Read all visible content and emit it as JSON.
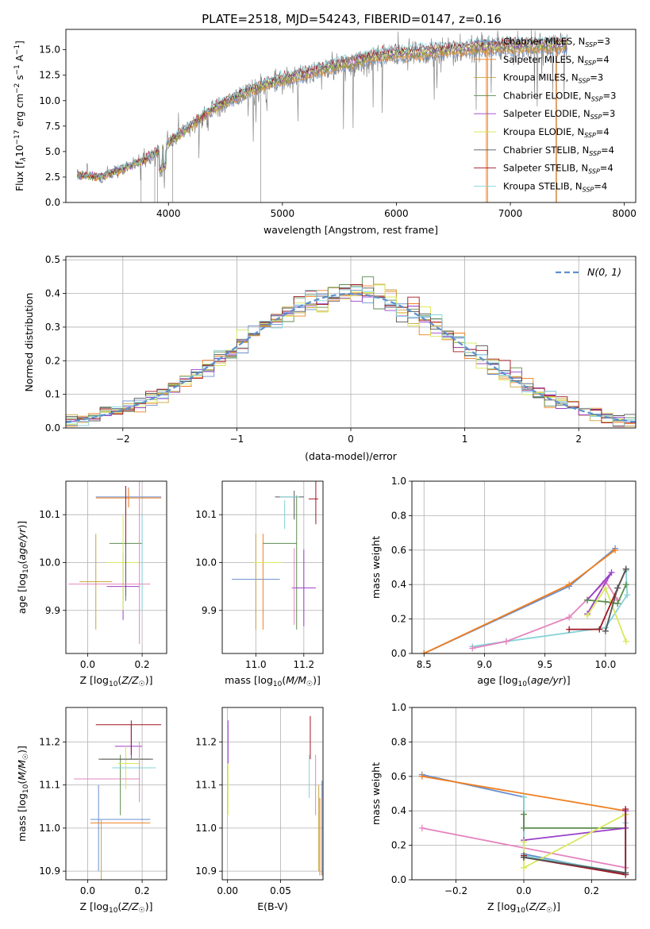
{
  "figure": {
    "title": "PLATE=2518, MJD=54243, FIBERID=0147, z=0.16"
  },
  "colors": {
    "series": [
      "#6a8fce",
      "#f07f1f",
      "#c6a53c",
      "#5d8c4e",
      "#9a3fc8",
      "#d9e85a",
      "#555555",
      "#a01520",
      "#84d3da"
    ],
    "gaussian": "#5e8fce",
    "pink": "#e484be",
    "spectrum": "#777777",
    "grid": "#b0b0b0"
  },
  "chart_data": [
    {
      "id": "spectrum",
      "type": "line",
      "xlabel": "wavelength [Angstrom, rest frame]",
      "ylabel": "Flux [f$_\\lambda$10$^{-17}$ erg cm$^{-2}$ s$^{-1}$ A$^{-1}$]",
      "xlim": [
        3100,
        8100
      ],
      "ylim": [
        0,
        17
      ],
      "xticks": [
        4000,
        5000,
        6000,
        7000,
        8000
      ],
      "yticks": [
        0.0,
        2.5,
        5.0,
        7.5,
        10.0,
        12.5,
        15.0
      ],
      "ytick_labels": [
        "0.0",
        "2.5",
        "5.0",
        "7.5",
        "10.0",
        "12.5",
        "15.0"
      ],
      "grid": false,
      "legend_position": "right",
      "legend": [
        {
          "label": "Chabrier MILES, N",
          "sub": "SSP",
          "n": "=3"
        },
        {
          "label": "Salpeter MILES, N",
          "sub": "SSP",
          "n": "=4"
        },
        {
          "label": "Kroupa MILES, N",
          "sub": "SSP",
          "n": "=3"
        },
        {
          "label": "Chabrier ELODIE, N",
          "sub": "SSP",
          "n": "=3"
        },
        {
          "label": "Salpeter ELODIE, N",
          "sub": "SSP",
          "n": "=3"
        },
        {
          "label": "Kroupa ELODIE, N",
          "sub": "SSP",
          "n": "=4"
        },
        {
          "label": "Chabrier STELIB, N",
          "sub": "SSP",
          "n": "=4"
        },
        {
          "label": "Salpeter STELIB, N",
          "sub": "SSP",
          "n": "=4"
        },
        {
          "label": "Kroupa STELIB, N",
          "sub": "SSP",
          "n": "=4"
        }
      ],
      "continuum": {
        "x": [
          3200,
          3400,
          3600,
          3800,
          4000,
          4200,
          4400,
          4600,
          4800,
          5000,
          5200,
          5400,
          5600,
          5800,
          6000,
          6200,
          6400,
          6600,
          6800,
          7000,
          7200,
          7400,
          7500
        ],
        "y": [
          2.7,
          2.5,
          3.3,
          4.2,
          5.8,
          7.5,
          9.2,
          10.3,
          11.3,
          12.0,
          12.5,
          13.2,
          13.6,
          14.2,
          14.5,
          14.6,
          14.8,
          15.0,
          15.1,
          15.2,
          15.3,
          15.3,
          15.4
        ]
      },
      "model_range": [
        3200,
        7500
      ]
    },
    {
      "id": "residuals",
      "type": "histogram",
      "xlabel": "(data-model)/error",
      "ylabel": "Normed distribution",
      "xlim": [
        -2.5,
        2.5
      ],
      "ylim": [
        0,
        0.51
      ],
      "xticks": [
        -2,
        -1,
        0,
        1,
        2
      ],
      "xtick_labels": [
        "−2",
        "−1",
        "0",
        "1",
        "2"
      ],
      "yticks": [
        0.0,
        0.1,
        0.2,
        0.3,
        0.4,
        0.5
      ],
      "ytick_labels": [
        "0.0",
        "0.1",
        "0.2",
        "0.3",
        "0.4",
        "0.5"
      ],
      "grid": true,
      "legend_position": "top-right",
      "gaussian_label": "N(0, 1)",
      "bin_width": 0.1
    },
    {
      "id": "age-vs-Z",
      "type": "errorbar",
      "xlabel": "Z [log₁₀(Z/Z☉)]",
      "ylabel": "age [log₁₀(age/yr)]",
      "xlim": [
        -0.08,
        0.29
      ],
      "ylim": [
        9.81,
        10.17
      ],
      "xticks": [
        0.0,
        0.2
      ],
      "xtick_labels": [
        "0.0",
        "0.2"
      ],
      "yticks": [
        9.9,
        10.0,
        10.1
      ],
      "ytick_labels": [
        "9.9",
        "10.0",
        "10.1"
      ],
      "grid": true,
      "points": [
        {
          "c": 0,
          "x": 0.15,
          "xe": 0.12,
          "y": 10.137,
          "ye": 0.02
        },
        {
          "c": 1,
          "x": 0.15,
          "xe": 0.12,
          "y": 10.135,
          "ye": 0.02
        },
        {
          "c": 2,
          "x": 0.03,
          "xe": 0.06,
          "y": 9.96,
          "ye": 0.1
        },
        {
          "c": 3,
          "x": 0.14,
          "xe": 0.06,
          "y": 10.04,
          "ye": 0.12
        },
        {
          "c": 4,
          "x": 0.13,
          "xe": 0.06,
          "y": 9.95,
          "ye": 0.07
        },
        {
          "c": 5,
          "x": 0.13,
          "xe": 0.06,
          "y": 10.0,
          "ye": 0.1
        },
        {
          "c": 6,
          "x": 0.14,
          "xe": 0.0,
          "y": 10.03,
          "ye": 0.1
        },
        {
          "c": 7,
          "x": 0.14,
          "xe": 0.0,
          "y": 10.1,
          "ye": 0.06
        },
        {
          "c": 8,
          "x": 0.2,
          "xe": 0.0,
          "y": 10.0,
          "ye": 0.1
        },
        {
          "c": 9,
          "x": 0.08,
          "xe": 0.15,
          "y": 9.955,
          "ye": 0.0
        },
        {
          "c": 9,
          "x": 0.19,
          "xe": 0.0,
          "y": 10.0,
          "ye": 0.17
        }
      ]
    },
    {
      "id": "age-vs-mass",
      "type": "errorbar",
      "xlabel": "mass [log₁₀(M/M☉)]",
      "ylabel": "",
      "xlim": [
        10.86,
        11.28
      ],
      "ylim": [
        9.81,
        10.17
      ],
      "xticks": [
        11.0,
        11.2
      ],
      "xtick_labels": [
        "11.0",
        "11.2"
      ],
      "yticks": [
        9.9,
        10.0,
        10.1
      ],
      "ytick_labels": [
        "9.9",
        "10.0",
        "10.1"
      ],
      "grid": true,
      "points": [
        {
          "c": 0,
          "x": 11.0,
          "xe": 0.1,
          "y": 9.965,
          "ye": 0.0
        },
        {
          "c": 1,
          "x": 11.03,
          "xe": 0.0,
          "y": 9.96,
          "ye": 0.1
        },
        {
          "c": 2,
          "x": 11.0,
          "xe": 0.0,
          "y": 9.96,
          "ye": 0.1
        },
        {
          "c": 3,
          "x": 11.1,
          "xe": 0.07,
          "y": 10.04,
          "ye": 0.0
        },
        {
          "c": 3,
          "x": 11.17,
          "xe": 0.0,
          "y": 10.0,
          "ye": 0.14
        },
        {
          "c": 4,
          "x": 11.2,
          "xe": 0.05,
          "y": 9.947,
          "ye": 0.0
        },
        {
          "c": 4,
          "x": 11.2,
          "xe": 0.0,
          "y": 9.947,
          "ye": 0.08
        },
        {
          "c": 5,
          "x": 11.05,
          "xe": 0.06,
          "y": 10.0,
          "ye": 0.0
        },
        {
          "c": 6,
          "x": 11.14,
          "xe": 0.06,
          "y": 10.137,
          "ye": 0.0
        },
        {
          "c": 6,
          "x": 11.16,
          "xe": 0.0,
          "y": 10.12,
          "ye": 0.03
        },
        {
          "c": 7,
          "x": 11.24,
          "xe": 0.02,
          "y": 10.133,
          "ye": 0.0
        },
        {
          "c": 7,
          "x": 11.25,
          "xe": 0.0,
          "y": 10.13,
          "ye": 0.05
        },
        {
          "c": 8,
          "x": 11.12,
          "xe": 0.0,
          "y": 10.1,
          "ye": 0.03
        },
        {
          "c": 8,
          "x": 11.14,
          "xe": 0.04,
          "y": 10.137,
          "ye": 0.0
        },
        {
          "c": 9,
          "x": 11.16,
          "xe": 0.0,
          "y": 9.95,
          "ye": 0.08
        }
      ]
    },
    {
      "id": "massweight-vs-age",
      "type": "line",
      "xlabel": "age [log₁₀(age/yr)]",
      "ylabel": "mass weight",
      "xlim": [
        8.4,
        10.25
      ],
      "ylim": [
        0,
        1
      ],
      "xticks": [
        8.5,
        9.0,
        9.5,
        10.0
      ],
      "xtick_labels": [
        "8.5",
        "9.0",
        "9.5",
        "10.0"
      ],
      "yticks": [
        0.0,
        0.2,
        0.4,
        0.6,
        0.8,
        1.0
      ],
      "ytick_labels": [
        "0.0",
        "0.2",
        "0.4",
        "0.6",
        "0.8",
        "1.0"
      ],
      "grid": true,
      "series": [
        {
          "c": 0,
          "x": [
            8.5,
            9.7,
            10.08
          ],
          "y": [
            0.0,
            0.39,
            0.61
          ]
        },
        {
          "c": 1,
          "x": [
            8.5,
            9.7,
            10.08
          ],
          "y": [
            0.0,
            0.4,
            0.6
          ]
        },
        {
          "c": 8,
          "x": [
            8.9,
            9.18,
            10.0,
            10.18,
            10.17
          ],
          "y": [
            0.04,
            0.07,
            0.15,
            0.34,
            0.48
          ]
        },
        {
          "c": 9,
          "x": [
            8.9,
            9.18,
            9.7,
            10.0,
            10.1
          ],
          "y": [
            0.03,
            0.07,
            0.21,
            0.42,
            0.31
          ]
        },
        {
          "c": 4,
          "x": [
            9.85,
            10.05,
            9.85
          ],
          "y": [
            0.23,
            0.47,
            0.31
          ]
        },
        {
          "c": 3,
          "x": [
            9.85,
            10.0,
            10.1,
            10.17
          ],
          "y": [
            0.31,
            0.3,
            0.29,
            0.4
          ]
        },
        {
          "c": 5,
          "x": [
            9.85,
            10.0,
            10.17
          ],
          "y": [
            0.22,
            0.38,
            0.07
          ]
        },
        {
          "c": 7,
          "x": [
            9.7,
            9.95,
            10.17
          ],
          "y": [
            0.14,
            0.14,
            0.49
          ]
        },
        {
          "c": 6,
          "x": [
            10.0,
            10.1,
            10.17
          ],
          "y": [
            0.13,
            0.38,
            0.49
          ]
        }
      ]
    },
    {
      "id": "mass-vs-Z",
      "type": "errorbar",
      "xlabel": "Z [log₁₀(Z/Z☉)]",
      "ylabel": "mass [log₁₀(M/M☉)]",
      "xlim": [
        -0.08,
        0.29
      ],
      "ylim": [
        10.88,
        11.28
      ],
      "xticks": [
        0.0,
        0.2
      ],
      "xtick_labels": [
        "0.0",
        "0.2"
      ],
      "yticks": [
        10.9,
        11.0,
        11.1,
        11.2
      ],
      "ytick_labels": [
        "10.9",
        "11.0",
        "11.1",
        "11.2"
      ],
      "grid": true,
      "points": [
        {
          "c": 0,
          "x": 0.12,
          "xe": 0.11,
          "y": 11.02,
          "ye": 0.0
        },
        {
          "c": 0,
          "x": 0.04,
          "xe": 0.0,
          "y": 11.0,
          "ye": 0.1
        },
        {
          "c": 1,
          "x": 0.12,
          "xe": 0.11,
          "y": 11.012,
          "ye": 0.0
        },
        {
          "c": 2,
          "x": 0.05,
          "xe": 0.0,
          "y": 10.95,
          "ye": 0.07
        },
        {
          "c": 3,
          "x": 0.14,
          "xe": 0.09,
          "y": 11.16,
          "ye": 0.0
        },
        {
          "c": 3,
          "x": 0.12,
          "xe": 0.0,
          "y": 11.1,
          "ye": 0.07
        },
        {
          "c": 4,
          "x": 0.15,
          "xe": 0.05,
          "y": 11.19,
          "ye": 0.0
        },
        {
          "c": 4,
          "x": 0.16,
          "xe": 0.0,
          "y": 11.2,
          "ye": 0.04
        },
        {
          "c": 5,
          "x": 0.15,
          "xe": 0.04,
          "y": 11.15,
          "ye": 0.0
        },
        {
          "c": 5,
          "x": 0.14,
          "xe": 0.0,
          "y": 11.14,
          "ye": 0.05
        },
        {
          "c": 6,
          "x": 0.14,
          "xe": 0.1,
          "y": 11.16,
          "ye": 0.0
        },
        {
          "c": 7,
          "x": 0.15,
          "xe": 0.12,
          "y": 11.24,
          "ye": 0.0
        },
        {
          "c": 7,
          "x": 0.16,
          "xe": 0.0,
          "y": 11.21,
          "ye": 0.04
        },
        {
          "c": 8,
          "x": 0.17,
          "xe": 0.08,
          "y": 11.14,
          "ye": 0.0
        },
        {
          "c": 9,
          "x": 0.07,
          "xe": 0.12,
          "y": 11.114,
          "ye": 0.0
        },
        {
          "c": 9,
          "x": 0.19,
          "xe": 0.0,
          "y": 11.13,
          "ye": 0.07
        }
      ]
    },
    {
      "id": "mass-vs-ebv",
      "type": "errorbar",
      "xlabel": "E(B-V)",
      "ylabel": "",
      "xlim": [
        -0.005,
        0.09
      ],
      "ylim": [
        10.88,
        11.28
      ],
      "xticks": [
        0.0,
        0.05
      ],
      "xtick_labels": [
        "0.00",
        "0.05"
      ],
      "yticks": [
        10.9,
        11.0,
        11.1,
        11.2
      ],
      "ytick_labels": [
        "10.9",
        "11.0",
        "11.1",
        "11.2"
      ],
      "grid": true,
      "points": [
        {
          "c": 4,
          "x": 0.0005,
          "xe": 0.0,
          "y": 11.2,
          "ye": 0.05
        },
        {
          "c": 5,
          "x": 0.0005,
          "xe": 0.0,
          "y": 11.09,
          "ye": 0.06
        },
        {
          "c": 7,
          "x": 0.078,
          "xe": 0.0,
          "y": 11.21,
          "ye": 0.05
        },
        {
          "c": 8,
          "x": 0.077,
          "xe": 0.0,
          "y": 11.12,
          "ye": 0.05
        },
        {
          "c": 9,
          "x": 0.083,
          "xe": 0.0,
          "y": 11.1,
          "ye": 0.07
        },
        {
          "c": 2,
          "x": 0.086,
          "xe": 0.0,
          "y": 11.0,
          "ye": 0.1
        },
        {
          "c": 0,
          "x": 0.089,
          "xe": 0.0,
          "y": 11.0,
          "ye": 0.11
        },
        {
          "c": 1,
          "x": 0.087,
          "xe": 0.0,
          "y": 10.98,
          "ye": 0.09
        }
      ]
    },
    {
      "id": "massweight-vs-Z",
      "type": "line",
      "xlabel": "Z [log₁₀(Z/Z☉)]",
      "ylabel": "mass weight",
      "xlim": [
        -0.33,
        0.33
      ],
      "ylim": [
        0,
        1
      ],
      "xticks": [
        -0.2,
        0.0,
        0.2
      ],
      "xtick_labels": [
        "−0.2",
        "0.0",
        "0.2"
      ],
      "yticks": [
        0.0,
        0.2,
        0.4,
        0.6,
        0.8,
        1.0
      ],
      "ytick_labels": [
        "0.0",
        "0.2",
        "0.4",
        "0.6",
        "0.8",
        "1.0"
      ],
      "grid": true,
      "series": [
        {
          "c": 0,
          "x": [
            -0.3,
            0.0,
            0.0,
            0.3,
            0.3
          ],
          "y": [
            0.61,
            0.48,
            0.15,
            0.03,
            0.4
          ]
        },
        {
          "c": 1,
          "x": [
            -0.3,
            0.3
          ],
          "y": [
            0.6,
            0.4
          ]
        },
        {
          "c": 9,
          "x": [
            -0.3,
            0.3
          ],
          "y": [
            0.3,
            0.07
          ]
        },
        {
          "c": 8,
          "x": [
            0.0,
            0.0,
            0.3,
            0.3
          ],
          "y": [
            0.48,
            0.14,
            0.04,
            0.33
          ]
        },
        {
          "c": 3,
          "x": [
            0.0,
            0.0,
            0.3,
            0.3
          ],
          "y": [
            0.38,
            0.3,
            0.3,
            0.38
          ]
        },
        {
          "c": 4,
          "x": [
            0.0,
            0.3,
            0.3
          ],
          "y": [
            0.23,
            0.3,
            0.4
          ]
        },
        {
          "c": 5,
          "x": [
            0.0,
            0.0,
            0.3
          ],
          "y": [
            0.22,
            0.07,
            0.38
          ]
        },
        {
          "c": 7,
          "x": [
            0.0,
            0.0,
            0.3,
            0.3
          ],
          "y": [
            0.14,
            0.13,
            0.03,
            0.41
          ]
        },
        {
          "c": 6,
          "x": [
            0.0,
            0.3
          ],
          "y": [
            0.13,
            0.04
          ]
        }
      ]
    }
  ]
}
